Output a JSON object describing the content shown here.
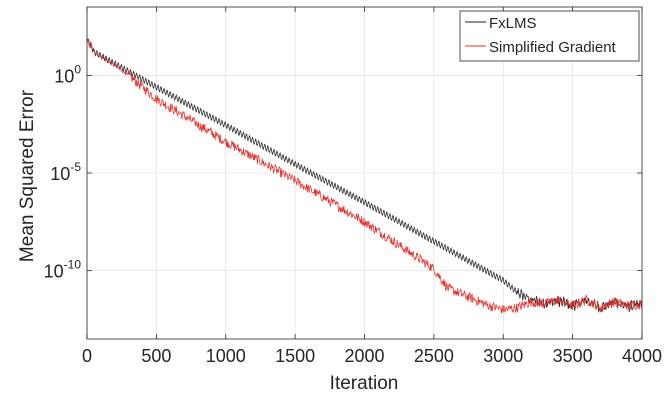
{
  "chart_data": {
    "type": "line",
    "title": "",
    "xlabel": "Iteration",
    "ylabel": "Mean Squared Error",
    "xlim": [
      0,
      4000
    ],
    "ylim_log10": [
      -13.5,
      3.5
    ],
    "yscale": "log",
    "grid": true,
    "legend_position": "top-right",
    "x_ticks": [
      0,
      500,
      1000,
      1500,
      2000,
      2500,
      3000,
      3500,
      4000
    ],
    "x_tick_labels": [
      "0",
      "500",
      "1000",
      "1500",
      "2000",
      "2500",
      "3000",
      "3500",
      "4000"
    ],
    "y_ticks_log10": [
      0,
      -5,
      -10
    ],
    "y_tick_labels": [
      {
        "base": "10",
        "exp": "0"
      },
      {
        "base": "10",
        "exp": "-5"
      },
      {
        "base": "10",
        "exp": "-10"
      }
    ],
    "series": [
      {
        "name": "FxLMS",
        "color": "#262626",
        "oscillation_period": 22,
        "oscillation_amplitude_log10": 0.15,
        "x": [
          0,
          50,
          200,
          500,
          1000,
          1500,
          2000,
          2500,
          3000,
          3100,
          3200,
          3300,
          3400,
          3500,
          3600,
          3700,
          3800,
          3900,
          4000
        ],
        "y_log10": [
          1.8,
          1.2,
          0.6,
          -0.6,
          -2.55,
          -4.55,
          -6.5,
          -8.5,
          -10.5,
          -11.1,
          -11.5,
          -11.65,
          -11.55,
          -11.8,
          -11.5,
          -11.9,
          -11.6,
          -11.85,
          -11.7
        ]
      },
      {
        "name": "Simplified Gradient",
        "color": "#e8302a",
        "noise_amplitude_log10": 0.25,
        "x": [
          0,
          50,
          200,
          300,
          500,
          1000,
          1500,
          2000,
          2500,
          2600,
          2700,
          2800,
          2900,
          3000,
          3100,
          3200,
          3300,
          3400,
          3500,
          3600,
          3700,
          3800,
          3900,
          4000
        ],
        "y_log10": [
          1.8,
          1.2,
          0.5,
          0.0,
          -1.2,
          -3.4,
          -5.4,
          -7.5,
          -9.9,
          -10.9,
          -11.2,
          -11.5,
          -11.8,
          -12.0,
          -11.9,
          -11.6,
          -11.7,
          -11.5,
          -11.8,
          -11.5,
          -11.9,
          -11.6,
          -11.8,
          -11.7
        ]
      }
    ]
  }
}
